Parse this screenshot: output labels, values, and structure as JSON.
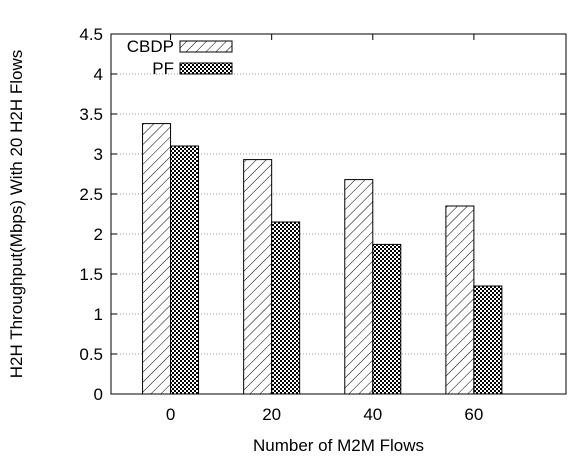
{
  "chart_data": {
    "type": "bar",
    "categories": [
      "0",
      "20",
      "40",
      "60"
    ],
    "series": [
      {
        "name": "CBDP",
        "values": [
          3.38,
          2.93,
          2.68,
          2.35
        ],
        "pattern": "diagonal-hatch"
      },
      {
        "name": "PF",
        "values": [
          3.1,
          2.15,
          1.87,
          1.35
        ],
        "pattern": "crosshatch"
      }
    ],
    "title": "",
    "xlabel": "Number of M2M Flows",
    "ylabel": "H2H Throughput(Mbps) With 20 H2H Flows",
    "ylim": [
      0,
      4.5
    ],
    "yticks": [
      "0",
      "0.5",
      "1",
      "1.5",
      "2",
      "2.5",
      "3",
      "3.5",
      "4",
      "4.5"
    ],
    "grid": "dotted-horizontal",
    "legend_position": "top-left"
  }
}
